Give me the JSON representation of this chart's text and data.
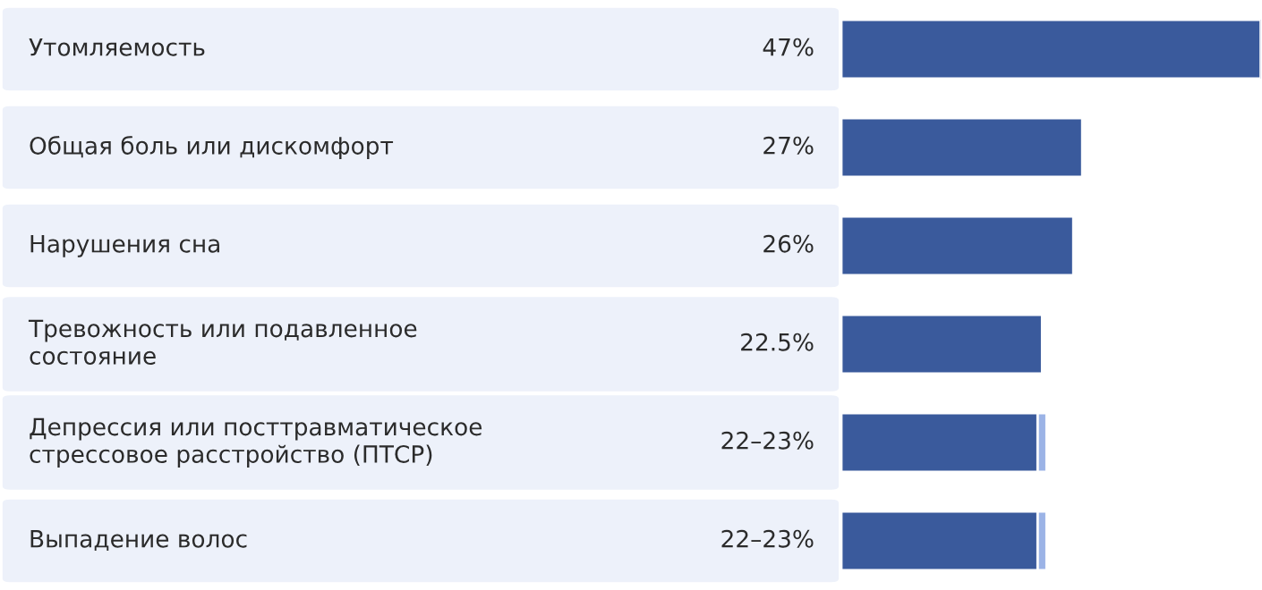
{
  "chart_data": {
    "type": "bar",
    "orientation": "horizontal",
    "stacked": true,
    "categories": [
      "Утомляемость",
      "Общая боль или дискомфорт",
      "Нарушения сна",
      "Тревожность или подавленное\nсостояние",
      "Депрессия или посттравматическое\nстрессовое расстройство (ПТСР)",
      "Выпадение волос"
    ],
    "series": [
      {
        "color": "#3a5a9c",
        "values": [
          47,
          27,
          26,
          22.5,
          22,
          22
        ],
        "value_labels": [
          "47%",
          "27%",
          "26%",
          "22.5%",
          "22–23%",
          "22–23%"
        ]
      },
      {
        "color": "#9bb3e6",
        "values": [
          null,
          null,
          null,
          null,
          1,
          1
        ]
      }
    ]
  }
}
